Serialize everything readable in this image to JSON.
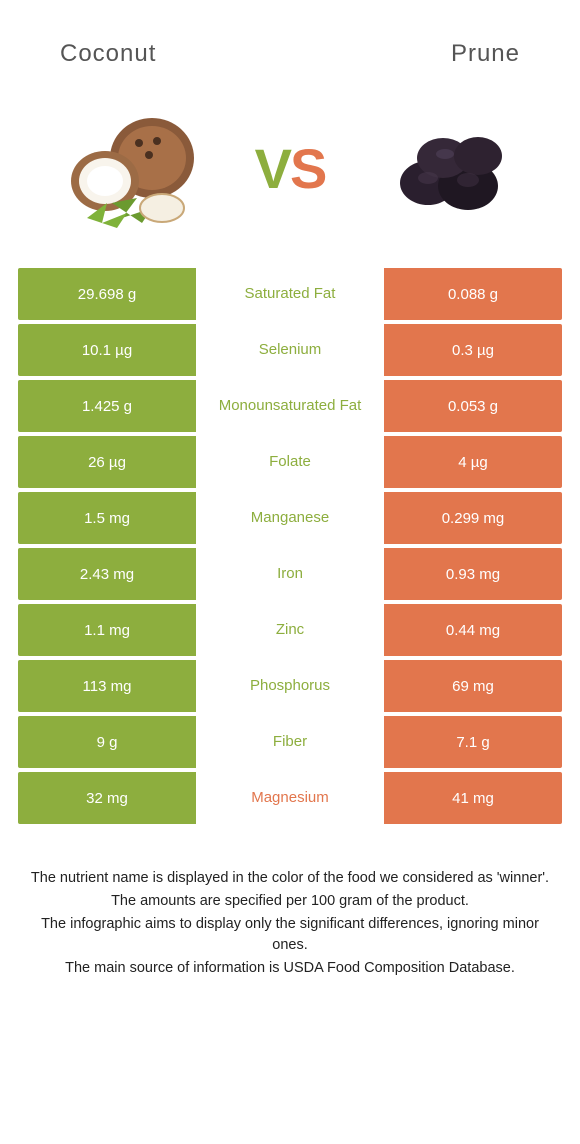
{
  "left_food": {
    "name": "Coconut",
    "color": "#8dae3e"
  },
  "right_food": {
    "name": "Prune",
    "color": "#e2764d"
  },
  "vs": {
    "v": "V",
    "s": "S"
  },
  "rows": [
    {
      "nutrient": "Saturated Fat",
      "left": "29.698 g",
      "right": "0.088 g",
      "winner": "left"
    },
    {
      "nutrient": "Selenium",
      "left": "10.1 µg",
      "right": "0.3 µg",
      "winner": "left"
    },
    {
      "nutrient": "Monounsaturated Fat",
      "left": "1.425 g",
      "right": "0.053 g",
      "winner": "left"
    },
    {
      "nutrient": "Folate",
      "left": "26 µg",
      "right": "4 µg",
      "winner": "left"
    },
    {
      "nutrient": "Manganese",
      "left": "1.5 mg",
      "right": "0.299 mg",
      "winner": "left"
    },
    {
      "nutrient": "Iron",
      "left": "2.43 mg",
      "right": "0.93 mg",
      "winner": "left"
    },
    {
      "nutrient": "Zinc",
      "left": "1.1 mg",
      "right": "0.44 mg",
      "winner": "left"
    },
    {
      "nutrient": "Phosphorus",
      "left": "113 mg",
      "right": "69 mg",
      "winner": "left"
    },
    {
      "nutrient": "Fiber",
      "left": "9 g",
      "right": "7.1 g",
      "winner": "left"
    },
    {
      "nutrient": "Magnesium",
      "left": "32 mg",
      "right": "41 mg",
      "winner": "right"
    }
  ],
  "colors": {
    "left_bg": "#8dae3e",
    "right_bg": "#e2764d",
    "left_text": "#8dae3e",
    "right_text": "#e2764d",
    "page_bg": "#ffffff"
  },
  "footer": {
    "line1": "The nutrient name is displayed in the color of the food we considered as 'winner'.",
    "line2": "The amounts are specified per 100 gram of the product.",
    "line3": "The infographic aims to display only the significant differences, ignoring minor ones.",
    "line4": "The main source of information is USDA Food Composition Database."
  }
}
